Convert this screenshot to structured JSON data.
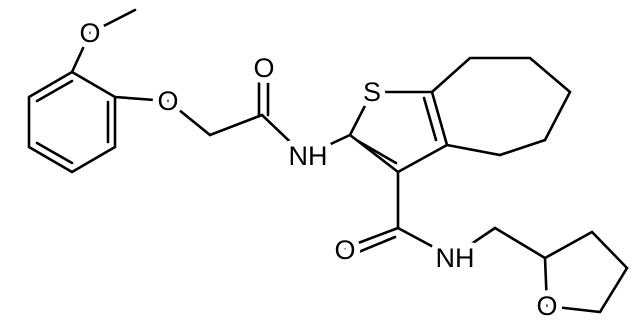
{
  "atoms": [
    {
      "label": "O"
    },
    {
      "label": "O"
    },
    {
      "label": "O"
    },
    {
      "label": "NH"
    },
    {
      "label": "S"
    },
    {
      "label": "O"
    },
    {
      "label": "NH"
    },
    {
      "label": "O"
    }
  ]
}
